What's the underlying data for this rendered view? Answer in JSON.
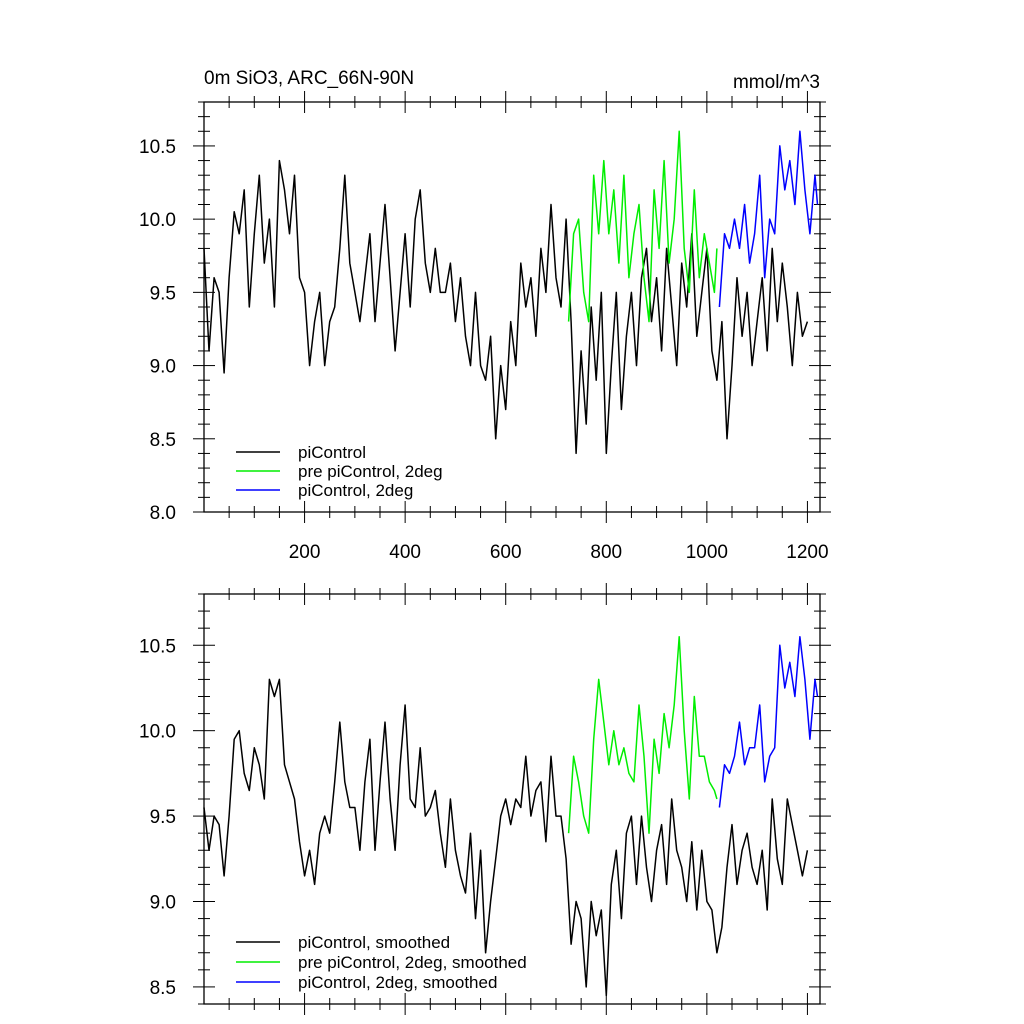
{
  "chart_data": [
    {
      "type": "line",
      "title": "0m SiO3, ARC_66N-90N",
      "units": "mmol/m^3",
      "xlim": [
        0,
        1225
      ],
      "ylim": [
        8.0,
        10.8
      ],
      "xticks": [
        200,
        400,
        600,
        800,
        1000,
        1200
      ],
      "xtick_labels": [
        "200",
        "400",
        "600",
        "800",
        "1000",
        "1200"
      ],
      "yticks": [
        8.0,
        8.5,
        9.0,
        9.5,
        10.0,
        10.5
      ],
      "ytick_labels": [
        "8.0",
        "8.5",
        "9.0",
        "9.5",
        "10.0",
        "10.5"
      ],
      "grid": false,
      "legend_position": "bottom-left",
      "series": [
        {
          "name": "piControl",
          "color": "#000000",
          "x": [
            0,
            10,
            20,
            30,
            40,
            50,
            60,
            70,
            80,
            90,
            100,
            110,
            120,
            130,
            140,
            150,
            160,
            170,
            180,
            190,
            200,
            210,
            220,
            230,
            240,
            250,
            260,
            270,
            280,
            290,
            300,
            310,
            320,
            330,
            340,
            350,
            360,
            370,
            380,
            390,
            400,
            410,
            420,
            430,
            440,
            450,
            460,
            470,
            480,
            490,
            500,
            510,
            520,
            530,
            540,
            550,
            560,
            570,
            580,
            590,
            600,
            610,
            620,
            630,
            640,
            650,
            660,
            670,
            680,
            690,
            700,
            710,
            720,
            730,
            740,
            750,
            760,
            770,
            780,
            790,
            800,
            810,
            820,
            830,
            840,
            850,
            860,
            870,
            880,
            890,
            900,
            910,
            920,
            930,
            940,
            950,
            960,
            970,
            980,
            990,
            1000,
            1010,
            1020,
            1030,
            1040,
            1050,
            1060,
            1070,
            1080,
            1090,
            1100,
            1110,
            1120,
            1130,
            1140,
            1150,
            1160,
            1170,
            1180,
            1190,
            1200
          ],
          "y": [
            9.8,
            9.1,
            9.6,
            9.5,
            8.95,
            9.6,
            10.05,
            9.9,
            10.2,
            9.4,
            9.9,
            10.3,
            9.7,
            10.0,
            9.4,
            10.4,
            10.2,
            9.9,
            10.3,
            9.6,
            9.5,
            9.0,
            9.3,
            9.5,
            9.0,
            9.3,
            9.4,
            9.8,
            10.3,
            9.7,
            9.5,
            9.3,
            9.6,
            9.9,
            9.3,
            9.7,
            10.1,
            9.6,
            9.1,
            9.5,
            9.9,
            9.4,
            10.0,
            10.2,
            9.7,
            9.5,
            9.8,
            9.5,
            9.5,
            9.7,
            9.3,
            9.6,
            9.2,
            9.0,
            9.5,
            9.0,
            8.9,
            9.2,
            8.5,
            9.0,
            8.7,
            9.3,
            9.0,
            9.7,
            9.4,
            9.6,
            9.2,
            9.8,
            9.5,
            10.1,
            9.6,
            9.4,
            10.0,
            9.3,
            8.4,
            9.1,
            8.6,
            9.4,
            8.9,
            9.5,
            8.4,
            9.0,
            9.5,
            8.7,
            9.2,
            9.5,
            9.0,
            9.6,
            9.8,
            9.3,
            9.6,
            9.1,
            9.8,
            9.4,
            9.0,
            9.7,
            9.4,
            9.9,
            9.2,
            9.5,
            9.8,
            9.1,
            8.9,
            9.3,
            8.5,
            9.0,
            9.6,
            9.2,
            9.5,
            9.0,
            9.3,
            9.6,
            9.1,
            9.8,
            9.3,
            9.7,
            9.4,
            9.0,
            9.5,
            9.2,
            9.3
          ]
        },
        {
          "name": "pre piControl, 2deg",
          "color": "#00ee00",
          "x": [
            725,
            735,
            745,
            755,
            765,
            775,
            785,
            795,
            805,
            815,
            825,
            835,
            845,
            855,
            865,
            875,
            885,
            895,
            905,
            915,
            925,
            935,
            945,
            955,
            965,
            975,
            985,
            995,
            1005,
            1015,
            1020
          ],
          "y": [
            9.3,
            9.9,
            10.0,
            9.5,
            9.3,
            10.3,
            9.9,
            10.4,
            9.9,
            10.2,
            9.7,
            10.3,
            9.6,
            9.9,
            10.1,
            9.6,
            9.3,
            10.2,
            9.8,
            10.4,
            9.7,
            10.0,
            10.6,
            9.8,
            9.5,
            10.2,
            9.6,
            9.9,
            9.7,
            9.5,
            9.8
          ]
        },
        {
          "name": "piControl, 2deg",
          "color": "#0000ff",
          "x": [
            1025,
            1035,
            1045,
            1055,
            1065,
            1075,
            1085,
            1095,
            1105,
            1115,
            1125,
            1135,
            1145,
            1155,
            1165,
            1175,
            1185,
            1195,
            1205,
            1215,
            1220
          ],
          "y": [
            9.4,
            9.9,
            9.8,
            10.0,
            9.8,
            10.1,
            9.7,
            9.9,
            10.3,
            9.6,
            10.0,
            9.9,
            10.5,
            10.2,
            10.4,
            10.1,
            10.6,
            10.2,
            9.9,
            10.3,
            10.1
          ]
        }
      ]
    },
    {
      "type": "line",
      "title": "",
      "xlim": [
        0,
        1225
      ],
      "ylim": [
        8.4,
        10.8
      ],
      "xticks": [
        200,
        400,
        600,
        800,
        1000,
        1200
      ],
      "yticks": [
        8.5,
        9.0,
        9.5,
        10.0,
        10.5
      ],
      "ytick_labels": [
        "8.5",
        "9.0",
        "9.5",
        "10.0",
        "10.5"
      ],
      "grid": false,
      "legend_position": "bottom-left",
      "series": [
        {
          "name": "piControl, smoothed",
          "color": "#000000",
          "x": [
            0,
            10,
            20,
            30,
            40,
            50,
            60,
            70,
            80,
            90,
            100,
            110,
            120,
            130,
            140,
            150,
            160,
            170,
            180,
            190,
            200,
            210,
            220,
            230,
            240,
            250,
            260,
            270,
            280,
            290,
            300,
            310,
            320,
            330,
            340,
            350,
            360,
            370,
            380,
            390,
            400,
            410,
            420,
            430,
            440,
            450,
            460,
            470,
            480,
            490,
            500,
            510,
            520,
            530,
            540,
            550,
            560,
            570,
            580,
            590,
            600,
            610,
            620,
            630,
            640,
            650,
            660,
            670,
            680,
            690,
            700,
            710,
            720,
            730,
            740,
            750,
            760,
            770,
            780,
            790,
            800,
            810,
            820,
            830,
            840,
            850,
            860,
            870,
            880,
            890,
            900,
            910,
            920,
            930,
            940,
            950,
            960,
            970,
            980,
            990,
            1000,
            1010,
            1020,
            1030,
            1040,
            1050,
            1060,
            1070,
            1080,
            1090,
            1100,
            1110,
            1120,
            1130,
            1140,
            1150,
            1160,
            1170,
            1180,
            1190,
            1200
          ],
          "y": [
            9.55,
            9.3,
            9.5,
            9.45,
            9.15,
            9.5,
            9.95,
            10.0,
            9.75,
            9.65,
            9.9,
            9.8,
            9.6,
            10.3,
            10.2,
            10.3,
            9.8,
            9.7,
            9.6,
            9.35,
            9.15,
            9.3,
            9.1,
            9.4,
            9.5,
            9.4,
            9.7,
            10.05,
            9.7,
            9.55,
            9.55,
            9.3,
            9.7,
            9.95,
            9.3,
            9.7,
            10.05,
            9.6,
            9.3,
            9.8,
            10.15,
            9.6,
            9.55,
            9.9,
            9.5,
            9.55,
            9.65,
            9.4,
            9.2,
            9.6,
            9.3,
            9.15,
            9.05,
            9.4,
            8.9,
            9.3,
            8.7,
            9.0,
            9.25,
            9.5,
            9.6,
            9.45,
            9.6,
            9.55,
            9.85,
            9.5,
            9.65,
            9.7,
            9.35,
            9.85,
            9.5,
            9.5,
            9.25,
            8.75,
            9.0,
            8.9,
            8.5,
            9.0,
            8.8,
            8.95,
            8.45,
            9.1,
            9.3,
            8.9,
            9.4,
            9.5,
            9.1,
            9.5,
            9.2,
            9.0,
            9.3,
            9.45,
            9.1,
            9.6,
            9.3,
            9.2,
            9.0,
            9.35,
            8.95,
            9.3,
            9.0,
            8.95,
            8.7,
            8.85,
            9.2,
            9.45,
            9.1,
            9.3,
            9.4,
            9.2,
            9.1,
            9.3,
            8.95,
            9.6,
            9.25,
            9.1,
            9.6,
            9.45,
            9.3,
            9.15,
            9.3
          ]
        },
        {
          "name": "pre piControl, 2deg, smoothed",
          "color": "#00ee00",
          "x": [
            725,
            735,
            745,
            755,
            765,
            775,
            785,
            795,
            805,
            815,
            825,
            835,
            845,
            855,
            865,
            875,
            885,
            895,
            905,
            915,
            925,
            935,
            945,
            955,
            965,
            975,
            985,
            995,
            1005,
            1015,
            1020
          ],
          "y": [
            9.4,
            9.85,
            9.7,
            9.5,
            9.4,
            9.95,
            10.3,
            10.05,
            9.8,
            10.0,
            9.8,
            9.9,
            9.75,
            9.7,
            10.15,
            9.85,
            9.4,
            9.95,
            9.75,
            10.1,
            9.9,
            10.15,
            10.55,
            10.0,
            9.6,
            10.2,
            9.85,
            9.85,
            9.7,
            9.65,
            9.6
          ]
        },
        {
          "name": "piControl, 2deg, smoothed",
          "color": "#0000ff",
          "x": [
            1025,
            1035,
            1045,
            1055,
            1065,
            1075,
            1085,
            1095,
            1105,
            1115,
            1125,
            1135,
            1145,
            1155,
            1165,
            1175,
            1185,
            1195,
            1205,
            1215,
            1220
          ],
          "y": [
            9.55,
            9.8,
            9.75,
            9.85,
            10.05,
            9.8,
            9.9,
            9.9,
            10.15,
            9.7,
            9.85,
            9.9,
            10.5,
            10.25,
            10.4,
            10.2,
            10.55,
            10.3,
            9.95,
            10.3,
            10.2
          ]
        }
      ]
    }
  ]
}
